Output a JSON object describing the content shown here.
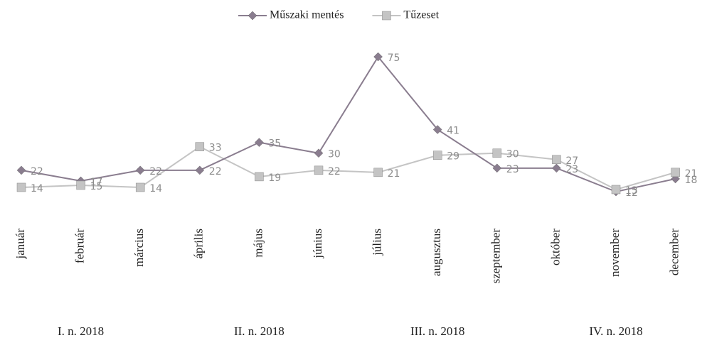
{
  "chart_data": {
    "type": "line",
    "categories": [
      "január",
      "február",
      "március",
      "április",
      "május",
      "június",
      "július",
      "augusztus",
      "szeptember",
      "október",
      "november",
      "december"
    ],
    "quarters": [
      "I. n. 2018",
      "II. n. 2018",
      "III. n. 2018",
      "IV. n. 2018"
    ],
    "series": [
      {
        "name": "Műszaki mentés",
        "color": "#8a7d8f",
        "marker": "diamond",
        "values": [
          22,
          17,
          22,
          22,
          35,
          30,
          75,
          41,
          23,
          23,
          12,
          18
        ]
      },
      {
        "name": "Tűzeset",
        "color": "#c4c4c4",
        "marker": "square",
        "values": [
          14,
          15,
          14,
          33,
          19,
          22,
          21,
          29,
          30,
          27,
          13,
          21
        ]
      }
    ]
  }
}
